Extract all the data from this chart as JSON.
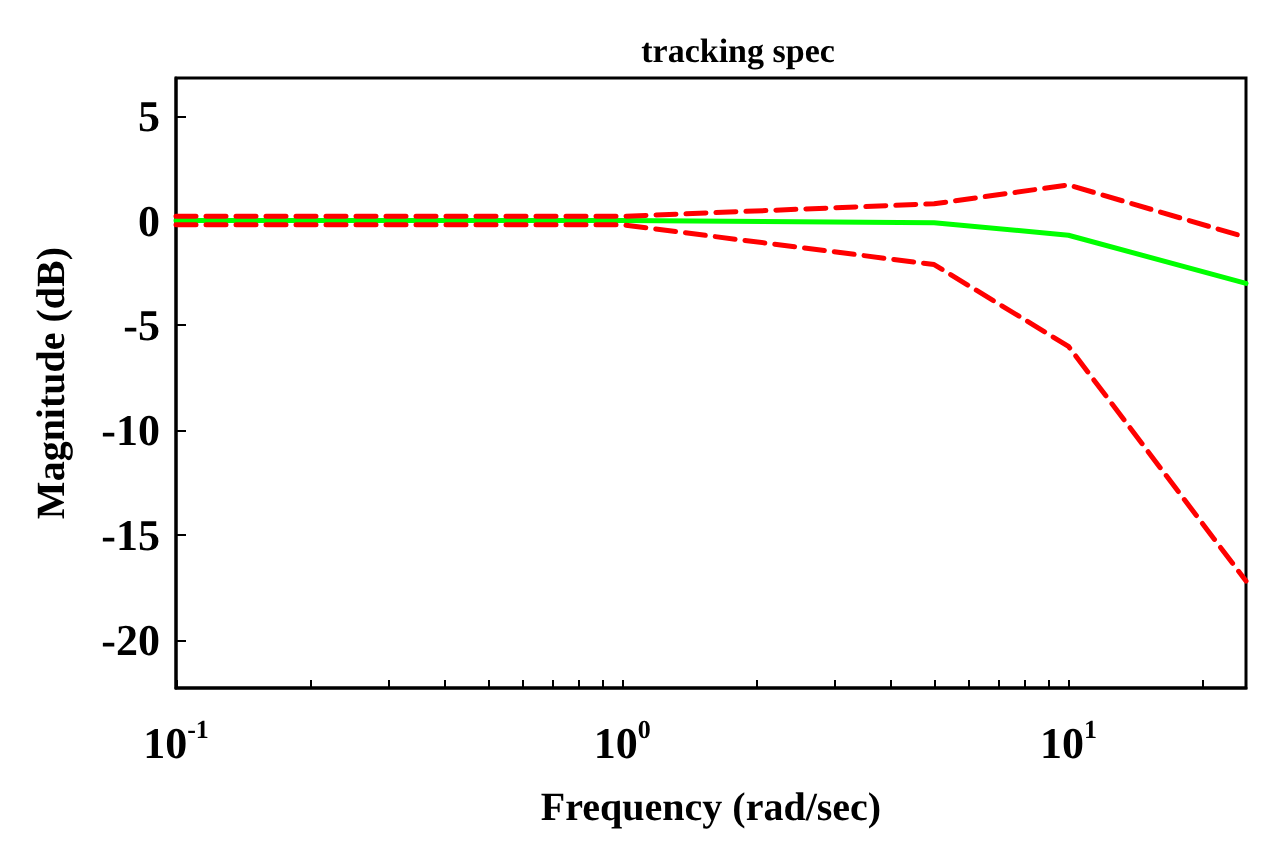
{
  "chart_data": {
    "type": "line",
    "title": "tracking spec",
    "xlabel": "Frequency (rad/sec)",
    "ylabel": "Magnitude (dB)",
    "log": "x",
    "grid": false,
    "marker": "none",
    "xlim": [
      0.1,
      25
    ],
    "ylim": [
      -22.3,
      6.8
    ],
    "xticks": [
      {
        "value": 0.1,
        "label": "10$^{-1}$"
      },
      {
        "value": 0.2,
        "label": null
      },
      {
        "value": 0.3,
        "label": null
      },
      {
        "value": 0.4,
        "label": null
      },
      {
        "value": 0.5,
        "label": null
      },
      {
        "value": 0.6,
        "label": null
      },
      {
        "value": 0.7,
        "label": null
      },
      {
        "value": 0.8,
        "label": null
      },
      {
        "value": 0.9,
        "label": null
      },
      {
        "value": 1,
        "label": "10$^{0}$"
      },
      {
        "value": 2,
        "label": null
      },
      {
        "value": 3,
        "label": null
      },
      {
        "value": 4,
        "label": null
      },
      {
        "value": 5,
        "label": null
      },
      {
        "value": 6,
        "label": null
      },
      {
        "value": 7,
        "label": null
      },
      {
        "value": 8,
        "label": null
      },
      {
        "value": 9,
        "label": null
      },
      {
        "value": 10,
        "label": "10$^{1}$"
      },
      {
        "value": 20,
        "label": null
      }
    ],
    "yticks": [
      -20,
      -15,
      -10,
      -5,
      0,
      5
    ],
    "x": [
      0.1,
      1,
      5,
      10,
      25
    ],
    "series": [
      {
        "color": "#00ff00",
        "line_style": "solid",
        "values": [
          0,
          0,
          -0.1,
          -0.7,
          -3.0
        ]
      },
      {
        "color": "#ff0000",
        "line_style": "dashed",
        "values": [
          0.2,
          0.2,
          0.8,
          1.7,
          -0.8
        ]
      },
      {
        "color": "#ff0000",
        "line_style": "dashed",
        "values": [
          -0.2,
          -0.2,
          -2.1,
          -6.0,
          -17.2
        ]
      }
    ]
  }
}
